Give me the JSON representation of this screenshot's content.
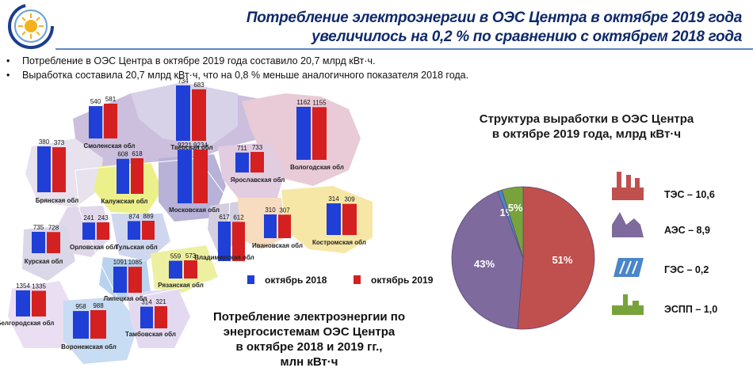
{
  "header": {
    "title_line1": "Потребление электроэнергии в ОЭС Центра в октябре 2019 года",
    "title_line2": "увеличилось на 0,2 % по сравнению с октябрем 2018 года"
  },
  "bullets": [
    "Потребление в ОЭС Центра в октябре 2019 года составило 20,7 млрд кВт·ч.",
    "Выработка составила 20,7 млрд кВт·ч, что на 0,8 % меньше аналогичного показателя 2018 года."
  ],
  "colors": {
    "oct2018": "#1f3fd6",
    "oct2019": "#d42020",
    "tes": "#c0504d",
    "aes": "#7f6a9e",
    "ges": "#4a86c8",
    "espp": "#77a33a"
  },
  "chart_data": [
    {
      "type": "bar",
      "legend": {
        "oct2018": "октябрь 2018",
        "oct2019": "октябрь 2019"
      },
      "caption": [
        "Потребление электроэнергии по",
        "энергосистемам ОЭС Центра",
        "в октябре 2018 и 2019 гг.,",
        "млн кВт·ч"
      ],
      "regions": [
        {
          "name": "Смоленская обл",
          "v2018": 540,
          "v2019": 581
        },
        {
          "name": "Тверская обл",
          "v2018": 734,
          "v2019": 683
        },
        {
          "name": "Вологодская обл",
          "v2018": 1162,
          "v2019": 1155
        },
        {
          "name": "Брянская обл",
          "v2018": 380,
          "v2019": 373
        },
        {
          "name": "Калужская обл",
          "v2018": 608,
          "v2019": 618
        },
        {
          "name": "Московская обл",
          "v2018": 9221,
          "v2019": 9234
        },
        {
          "name": "Ярославская обл",
          "v2018": 711,
          "v2019": 733
        },
        {
          "name": "Костромская обл",
          "v2018": 314,
          "v2019": 309
        },
        {
          "name": "Орловская обл",
          "v2018": 241,
          "v2019": 243
        },
        {
          "name": "Тульская обл",
          "v2018": 874,
          "v2019": 889
        },
        {
          "name": "Ивановская обл",
          "v2018": 310,
          "v2019": 307
        },
        {
          "name": "Владимирская обл",
          "v2018": 617,
          "v2019": 612
        },
        {
          "name": "Курская обл",
          "v2018": 735,
          "v2019": 728
        },
        {
          "name": "Липецкая обл",
          "v2018": 1091,
          "v2019": 1085
        },
        {
          "name": "Рязанская обл",
          "v2018": 559,
          "v2019": 573
        },
        {
          "name": "Белгородская обл",
          "v2018": 1354,
          "v2019": 1335
        },
        {
          "name": "Воронежская обл",
          "v2018": 958,
          "v2019": 988
        },
        {
          "name": "Тамбовская обл",
          "v2018": 314,
          "v2019": 321
        }
      ]
    },
    {
      "type": "pie",
      "title": [
        "Структура выработки в ОЭС Центра",
        "в октябре 2019 года, млрд кВт·ч"
      ],
      "slices": [
        {
          "key": "tes",
          "label": "ТЭС – 10,6",
          "value": 10.6,
          "pct": "51%"
        },
        {
          "key": "aes",
          "label": "АЭС – 8,9",
          "value": 8.9,
          "pct": "43%"
        },
        {
          "key": "ges",
          "label": "ГЭС – 0,2",
          "value": 0.2,
          "pct": "1%"
        },
        {
          "key": "espp",
          "label": "ЭСПП – 1,0",
          "value": 1.0,
          "pct": "5%"
        }
      ]
    }
  ]
}
